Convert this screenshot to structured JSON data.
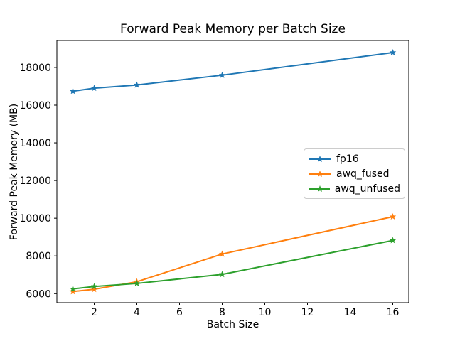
{
  "chart_data": {
    "type": "line",
    "title": "Forward Peak Memory per Batch Size",
    "xlabel": "Batch Size",
    "ylabel": "Forward Peak Memory (MB)",
    "x": [
      1,
      2,
      4,
      8,
      16
    ],
    "series": [
      {
        "name": "fp16",
        "color": "#1f77b4",
        "values": [
          16740,
          16900,
          17070,
          17590,
          18790
        ]
      },
      {
        "name": "awq_fused",
        "color": "#ff7f0e",
        "values": [
          6110,
          6230,
          6630,
          8100,
          10080
        ]
      },
      {
        "name": "awq_unfused",
        "color": "#2ca02c",
        "values": [
          6250,
          6380,
          6540,
          7020,
          8820
        ]
      }
    ],
    "marker": "star",
    "xticks": [
      2,
      4,
      6,
      8,
      10,
      12,
      14,
      16
    ],
    "yticks": [
      6000,
      8000,
      10000,
      12000,
      14000,
      16000,
      18000
    ],
    "xlim": [
      0.25,
      16.75
    ],
    "ylim": [
      5520,
      19430
    ],
    "grid": false,
    "legend": {
      "position": "center-right",
      "entries": [
        "fp16",
        "awq_fused",
        "awq_unfused"
      ]
    },
    "axis_color": "#000000",
    "background": "#ffffff"
  }
}
